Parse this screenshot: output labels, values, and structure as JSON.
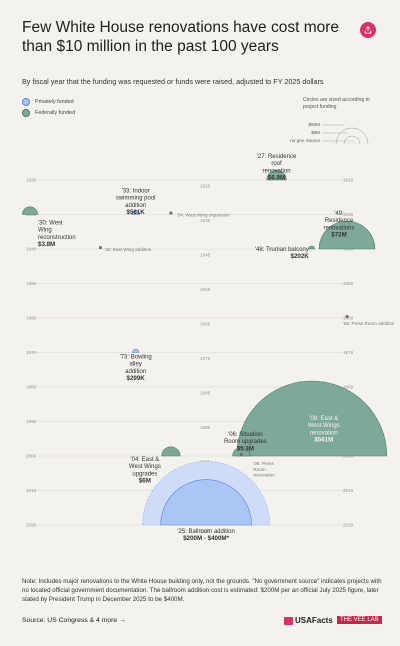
{
  "header": {
    "title": "Few White House renovations have cost more than $10 million in the past 100 years",
    "subtitle": "By fiscal year that the funding was requested or funds were raised, adjusted to FY 2025 dollars"
  },
  "legend": {
    "items": [
      {
        "label": "Privately funded",
        "color": "#a9c6f4"
      },
      {
        "label": "Federally funded",
        "color": "#7ea898"
      }
    ],
    "size_note": "Circles are sized according to project funding",
    "size_labels": [
      "$90M",
      "$5M",
      "no gov. source"
    ]
  },
  "colors": {
    "federal": "#7ea898",
    "private": "#a9c6f4",
    "private_outer": "#cfdcf8",
    "axis_line": "#d9d6d0",
    "axis_text": "#9a978f",
    "accent": "#d9306a"
  },
  "chart_data": {
    "type": "bubble-timeline",
    "x_axis": "year within decade (0-9)",
    "y_axis": "decade",
    "decades": [
      {
        "start": "1920",
        "mid": "1925",
        "end": "1929"
      },
      {
        "start": "1930",
        "mid": "1935",
        "end": "1939"
      },
      {
        "start": "1940",
        "mid": "1945",
        "end": "1949"
      },
      {
        "start": "1950",
        "mid": "1955",
        "end": "1959"
      },
      {
        "start": "1960",
        "mid": "1965",
        "end": "1969"
      },
      {
        "start": "1970",
        "mid": "1975",
        "end": "1979"
      },
      {
        "start": "1980",
        "mid": "1985",
        "end": "1989"
      },
      {
        "start": "1990",
        "mid": "1995",
        "end": "1999"
      },
      {
        "start": "2000",
        "mid": "2005",
        "end": "2009"
      },
      {
        "start": "2010",
        "mid": "2015",
        "end": "2019"
      },
      {
        "start": "2020",
        "mid": "2025",
        "end": "2029"
      }
    ],
    "projects": [
      {
        "year": 1927,
        "label": "'27: Residence roof renovation",
        "amount_label": "$6.9M",
        "amount": 6.9,
        "funding": "federal"
      },
      {
        "year": 1930,
        "label": "'30: West Wing reconstruction",
        "amount_label": "$3.8M",
        "amount": 3.8,
        "funding": "federal"
      },
      {
        "year": 1933,
        "label": "'33: Indoor swimming pool addition",
        "amount_label": "$561K",
        "amount": 0.561,
        "funding": "private"
      },
      {
        "year": 1934,
        "label": "'34: West Wing expansion",
        "amount_label": "",
        "amount": 0,
        "funding": "none"
      },
      {
        "year": 1942,
        "label": "'42: East Wing addition",
        "amount_label": "",
        "amount": 0,
        "funding": "none"
      },
      {
        "year": 1948,
        "label": "'48: Truman balcony",
        "amount_label": "$202K",
        "amount": 0.202,
        "funding": "federal"
      },
      {
        "year": 1949,
        "label": "'49: Residence renovations",
        "amount_label": "$72M",
        "amount": 72,
        "funding": "federal"
      },
      {
        "year": 1969,
        "label": "'69: Press Room addition",
        "amount_label": "",
        "amount": 0,
        "funding": "none"
      },
      {
        "year": 1973,
        "label": "'73: Bowling alley addition",
        "amount_label": "$299K",
        "amount": 0.299,
        "funding": "private"
      },
      {
        "year": 2004,
        "label": "'04: East & West Wings upgrades",
        "amount_label": "$6M",
        "amount": 6,
        "funding": "federal"
      },
      {
        "year": 2006,
        "label": "'06: Situation Room upgrades",
        "amount_label": "$5.3M",
        "amount": 5.3,
        "funding": "federal"
      },
      {
        "year": 2008,
        "label": "'08: East & West Wings renovation",
        "amount_label": "$561M",
        "amount": 561,
        "funding": "federal"
      },
      {
        "year": 2006,
        "label": "'06: Press Room renovation",
        "amount_label": "",
        "amount": 0,
        "funding": "none"
      },
      {
        "year": 2025,
        "label": "'25: Ballroom addition",
        "amount_label": "$200M - $400M*",
        "amount": 200,
        "amount_high": 400,
        "funding": "private"
      }
    ]
  },
  "footer": {
    "note": "Note: Includes major renovations to the White House building only, not the grounds. \"No government source\" indicates projects with no located official government documentation. The ballroom addition cost is estimated: $200M per an official July 2025 figure, later stated by President Trump in December 2025 to be $400M.",
    "source_label": "Source: US Congress & 4 more",
    "source_arrow": "→",
    "brand": "USAFacts",
    "badge": "THE VEE LAB"
  }
}
